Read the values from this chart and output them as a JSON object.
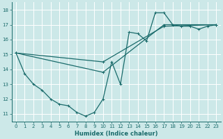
{
  "xlabel": "Humidex (Indice chaleur)",
  "bg_color": "#cce8e8",
  "grid_color": "#ffffff",
  "line_color": "#1a6b6b",
  "xlim": [
    -0.5,
    23.5
  ],
  "ylim": [
    10.5,
    18.5
  ],
  "xticks": [
    0,
    1,
    2,
    3,
    4,
    5,
    6,
    7,
    8,
    9,
    10,
    11,
    12,
    13,
    14,
    15,
    16,
    17,
    18,
    19,
    20,
    21,
    22,
    23
  ],
  "yticks": [
    11,
    12,
    13,
    14,
    15,
    16,
    17,
    18
  ],
  "lines": [
    {
      "x": [
        0,
        1,
        2,
        3,
        4,
        5,
        6,
        7,
        8,
        9,
        10,
        11,
        12,
        13,
        14,
        15,
        16,
        17,
        18,
        19,
        20,
        21,
        22,
        23
      ],
      "y": [
        15.1,
        13.7,
        13.0,
        12.6,
        12.0,
        11.65,
        11.55,
        11.1,
        10.85,
        11.1,
        12.0,
        14.5,
        13.0,
        16.5,
        16.4,
        15.9,
        17.8,
        17.8,
        17.0,
        16.9,
        16.9,
        16.7,
        16.9,
        17.0
      ]
    },
    {
      "x": [
        0,
        10,
        17,
        23
      ],
      "y": [
        15.1,
        13.8,
        17.0,
        17.0
      ]
    },
    {
      "x": [
        0,
        10,
        17,
        23
      ],
      "y": [
        15.1,
        14.5,
        16.9,
        17.0
      ]
    }
  ]
}
